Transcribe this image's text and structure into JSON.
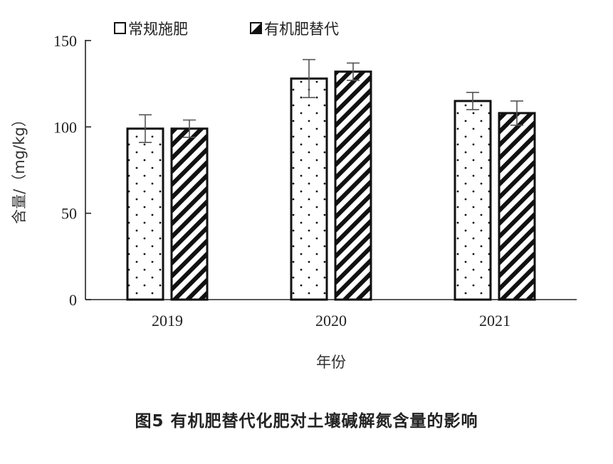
{
  "caption": "图5  有机肥替代化肥对土壤碱解氮含量的影响",
  "chart_data": {
    "type": "bar",
    "categories": [
      "2019",
      "2020",
      "2021"
    ],
    "series": [
      {
        "name": "常规施肥",
        "values": [
          99,
          128,
          115
        ],
        "errors": [
          8,
          11,
          5
        ],
        "pattern": "dots"
      },
      {
        "name": "有机肥替代",
        "values": [
          99,
          132,
          108
        ],
        "errors": [
          5,
          5,
          7
        ],
        "pattern": "hatch"
      }
    ],
    "xlabel": "年份",
    "ylabel": "含量/（mg/kg）",
    "ylim": [
      0,
      150
    ],
    "yticks": [
      0,
      50,
      100,
      150
    ],
    "legend_position": "top",
    "grid": false,
    "colors": {
      "bar_stroke": "#111111",
      "bar_fill": "#ffffff",
      "pattern": "#111111"
    }
  }
}
